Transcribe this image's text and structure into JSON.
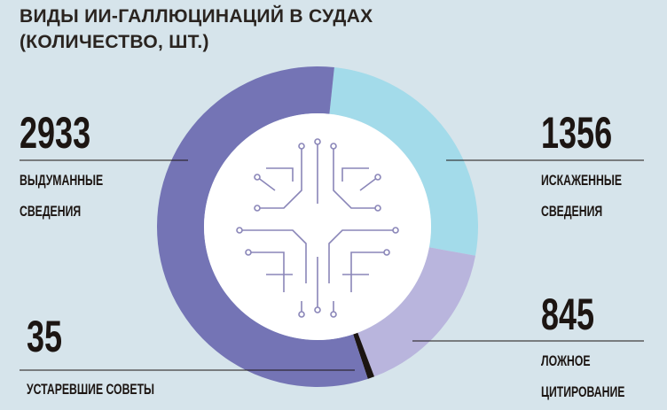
{
  "chart_data": {
    "type": "donut",
    "title": "ВИДЫ ИИ-ГАЛЛЮЦИНАЦИЙ В СУДАХ (КОЛИЧЕСТВО, ШТ.)",
    "categories": [
      "ИСКАЖЕННЫЕ СВЕДЕНИЯ",
      "ЛОЖНОЕ ЦИТИРОВАНИЕ",
      "УСТАРЕВШИЕ СОВЕТЫ",
      "ВЫДУМАННЫЕ СВЕДЕНИЯ"
    ],
    "values": [
      1356,
      845,
      35,
      2933
    ],
    "colors": [
      "#a3dbea",
      "#b9b5dd",
      "#1c1512",
      "#7474b5"
    ]
  }
}
